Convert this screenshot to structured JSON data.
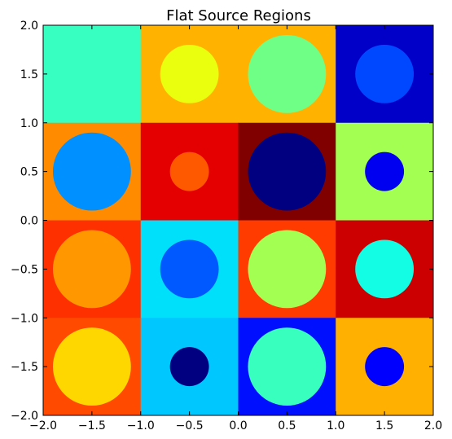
{
  "chart_data": {
    "type": "heatmap",
    "title": "Flat Source Regions",
    "xlabel": "",
    "ylabel": "",
    "xlim": [
      -2.0,
      2.0
    ],
    "ylim": [
      -2.0,
      2.0
    ],
    "xticks": [
      "−2.0",
      "−1.5",
      "−1.0",
      "−0.5",
      "0.0",
      "0.5",
      "1.0",
      "1.5",
      "2.0"
    ],
    "yticks": [
      "−2.0",
      "−1.5",
      "−1.0",
      "−0.5",
      "0.0",
      "0.5",
      "1.0",
      "1.5",
      "2.0"
    ],
    "grid": false,
    "cells": [
      {
        "x": -1.5,
        "y": 1.5,
        "square_color": "#36ffc1",
        "circle_color": "#36ffc1",
        "r": 0.0
      },
      {
        "x": -0.5,
        "y": 1.5,
        "square_color": "#ffb300",
        "circle_color": "#e9ff0e",
        "r": 0.3
      },
      {
        "x": 0.5,
        "y": 1.5,
        "square_color": "#ffb300",
        "circle_color": "#70ff86",
        "r": 0.4
      },
      {
        "x": 1.5,
        "y": 1.5,
        "square_color": "#0000c8",
        "circle_color": "#0048ff",
        "r": 0.3
      },
      {
        "x": -1.5,
        "y": 0.5,
        "square_color": "#ff8c00",
        "circle_color": "#0090ff",
        "r": 0.4
      },
      {
        "x": -0.5,
        "y": 0.5,
        "square_color": "#e40000",
        "circle_color": "#ff5900",
        "r": 0.2
      },
      {
        "x": 0.5,
        "y": 0.5,
        "square_color": "#800000",
        "circle_color": "#000080",
        "r": 0.4
      },
      {
        "x": 1.5,
        "y": 0.5,
        "square_color": "#a4ff53",
        "circle_color": "#0000f1",
        "r": 0.2
      },
      {
        "x": -1.5,
        "y": -0.5,
        "square_color": "#ff3000",
        "circle_color": "#ff9800",
        "r": 0.4
      },
      {
        "x": -0.5,
        "y": -0.5,
        "square_color": "#00e0fb",
        "circle_color": "#0058ff",
        "r": 0.3
      },
      {
        "x": 0.5,
        "y": -0.5,
        "square_color": "#ff3b00",
        "circle_color": "#a4ff53",
        "r": 0.4
      },
      {
        "x": 1.5,
        "y": -0.5,
        "square_color": "#cc0000",
        "circle_color": "#13fce4",
        "r": 0.3
      },
      {
        "x": -1.5,
        "y": -1.5,
        "square_color": "#ff4a00",
        "circle_color": "#ffd700",
        "r": 0.4
      },
      {
        "x": -0.5,
        "y": -1.5,
        "square_color": "#00c8ff",
        "circle_color": "#000080",
        "r": 0.2
      },
      {
        "x": 0.5,
        "y": -1.5,
        "square_color": "#0010ff",
        "circle_color": "#39ffbe",
        "r": 0.4
      },
      {
        "x": 1.5,
        "y": -1.5,
        "square_color": "#ffb000",
        "circle_color": "#0000ff",
        "r": 0.2
      }
    ]
  }
}
